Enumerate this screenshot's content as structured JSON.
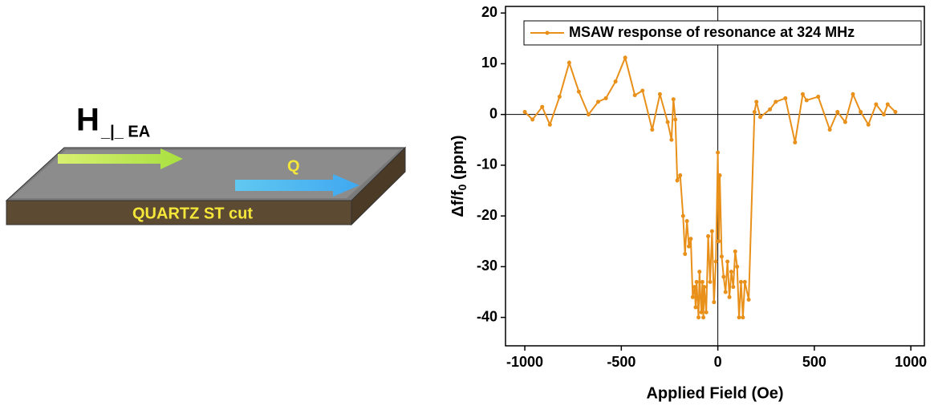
{
  "diagram": {
    "field_label": "H",
    "field_sub": "_|_ EA",
    "wave_label": "Q",
    "substrate_label": "QUARTZ ST cut"
  },
  "chart_data": {
    "type": "line",
    "xlabel": "Applied Field (Oe)",
    "ylabel": [
      "Δf/f",
      "0",
      " (ppm)"
    ],
    "xlim": [
      -1100,
      1070
    ],
    "ylim": [
      -45.6,
      21.3
    ],
    "xticks": [
      -1000,
      -500,
      0,
      500,
      1000
    ],
    "yticks": [
      -40,
      -30,
      -20,
      -10,
      0,
      10,
      20
    ],
    "legend": "upper right",
    "x": [
      -1000,
      -960,
      -910,
      -870,
      -820,
      -770,
      -720,
      -670,
      -620,
      -580,
      -530,
      -480,
      -430,
      -390,
      -340,
      -300,
      -260,
      -240,
      -230,
      -220,
      -210,
      -195,
      -180,
      -170,
      -160,
      -150,
      -140,
      -130,
      -120,
      -115,
      -110,
      -100,
      -95,
      -90,
      -85,
      -80,
      -75,
      -70,
      -60,
      -50,
      -40,
      -30,
      -20,
      -10,
      0,
      5,
      10,
      20,
      30,
      40,
      50,
      60,
      70,
      80,
      90,
      100,
      110,
      120,
      130,
      140,
      160,
      190,
      200,
      220,
      270,
      300,
      350,
      400,
      440,
      460,
      520,
      580,
      620,
      660,
      700,
      740,
      780,
      820,
      860,
      880,
      920
    ],
    "series": [
      {
        "name": "MSAW response of resonance at 324 MHz",
        "color": "#e8901a",
        "values": [
          0.5,
          -1,
          1.5,
          -2,
          3.5,
          10.2,
          4.5,
          0,
          2.5,
          3.2,
          6.5,
          11.2,
          3.8,
          4.7,
          -3,
          4,
          -1.5,
          -5,
          3,
          -1,
          -13,
          -12,
          -20,
          -27.5,
          -21,
          -26,
          -24.5,
          -36,
          -34,
          -38,
          -33,
          -40,
          -31,
          -36,
          -39,
          -33,
          -40,
          -34,
          -39,
          -24,
          -33,
          -23,
          -37,
          -29,
          -7.5,
          -25,
          -12,
          -28,
          -32,
          -35,
          -29,
          -36,
          -31,
          -34,
          -27,
          -30,
          -40,
          -33,
          -40,
          -33,
          -36.5,
          0.5,
          2.5,
          -0.5,
          1,
          2.5,
          3.2,
          -5.5,
          4,
          2.8,
          3.5,
          -3,
          0.5,
          -1.5,
          4,
          0.5,
          -2,
          2,
          0,
          2,
          0.5
        ]
      }
    ]
  }
}
